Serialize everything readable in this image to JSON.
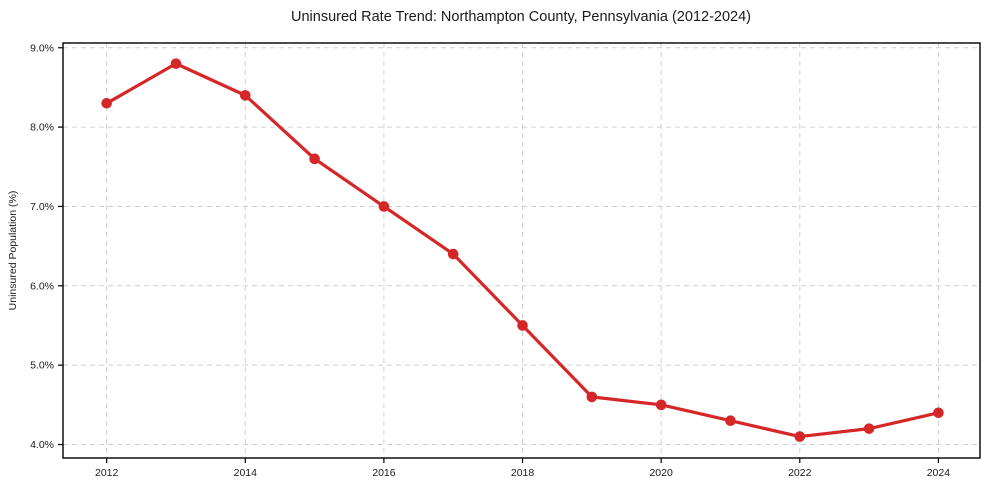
{
  "chart_data": {
    "type": "line",
    "title": "Uninsured Rate Trend: Northampton County, Pennsylvania (2012-2024)",
    "xlabel": "",
    "ylabel": "Uninsured Population (%)",
    "x": [
      2012,
      2013,
      2014,
      2015,
      2016,
      2017,
      2018,
      2019,
      2020,
      2021,
      2022,
      2023,
      2024
    ],
    "series": [
      {
        "name": "Uninsured rate",
        "values": [
          8.3,
          8.8,
          8.4,
          7.6,
          7.0,
          6.4,
          5.5,
          4.6,
          4.5,
          4.3,
          4.1,
          4.2,
          4.4
        ]
      }
    ],
    "x_ticks": [
      {
        "value": 2012,
        "label": "2012"
      },
      {
        "value": 2014,
        "label": "2014"
      },
      {
        "value": 2016,
        "label": "2016"
      },
      {
        "value": 2018,
        "label": "2018"
      },
      {
        "value": 2020,
        "label": "2020"
      },
      {
        "value": 2022,
        "label": "2022"
      },
      {
        "value": 2024,
        "label": "2024"
      }
    ],
    "y_ticks": [
      {
        "value": 4.0,
        "label": "4.0%"
      },
      {
        "value": 5.0,
        "label": "5.0%"
      },
      {
        "value": 6.0,
        "label": "6.0%"
      },
      {
        "value": 7.0,
        "label": "7.0%"
      },
      {
        "value": 8.0,
        "label": "8.0%"
      },
      {
        "value": 9.0,
        "label": "9.0%"
      }
    ],
    "xlim": [
      2011.37,
      2024.6
    ],
    "ylim": [
      3.83,
      9.06
    ],
    "grid": true,
    "legend": null,
    "colors": {
      "line": "#d62728",
      "marker": "#d62728",
      "grid": "#d0d0d0",
      "spine": "#000000",
      "text": "#1a1a1a",
      "background": "#ffffff"
    }
  }
}
